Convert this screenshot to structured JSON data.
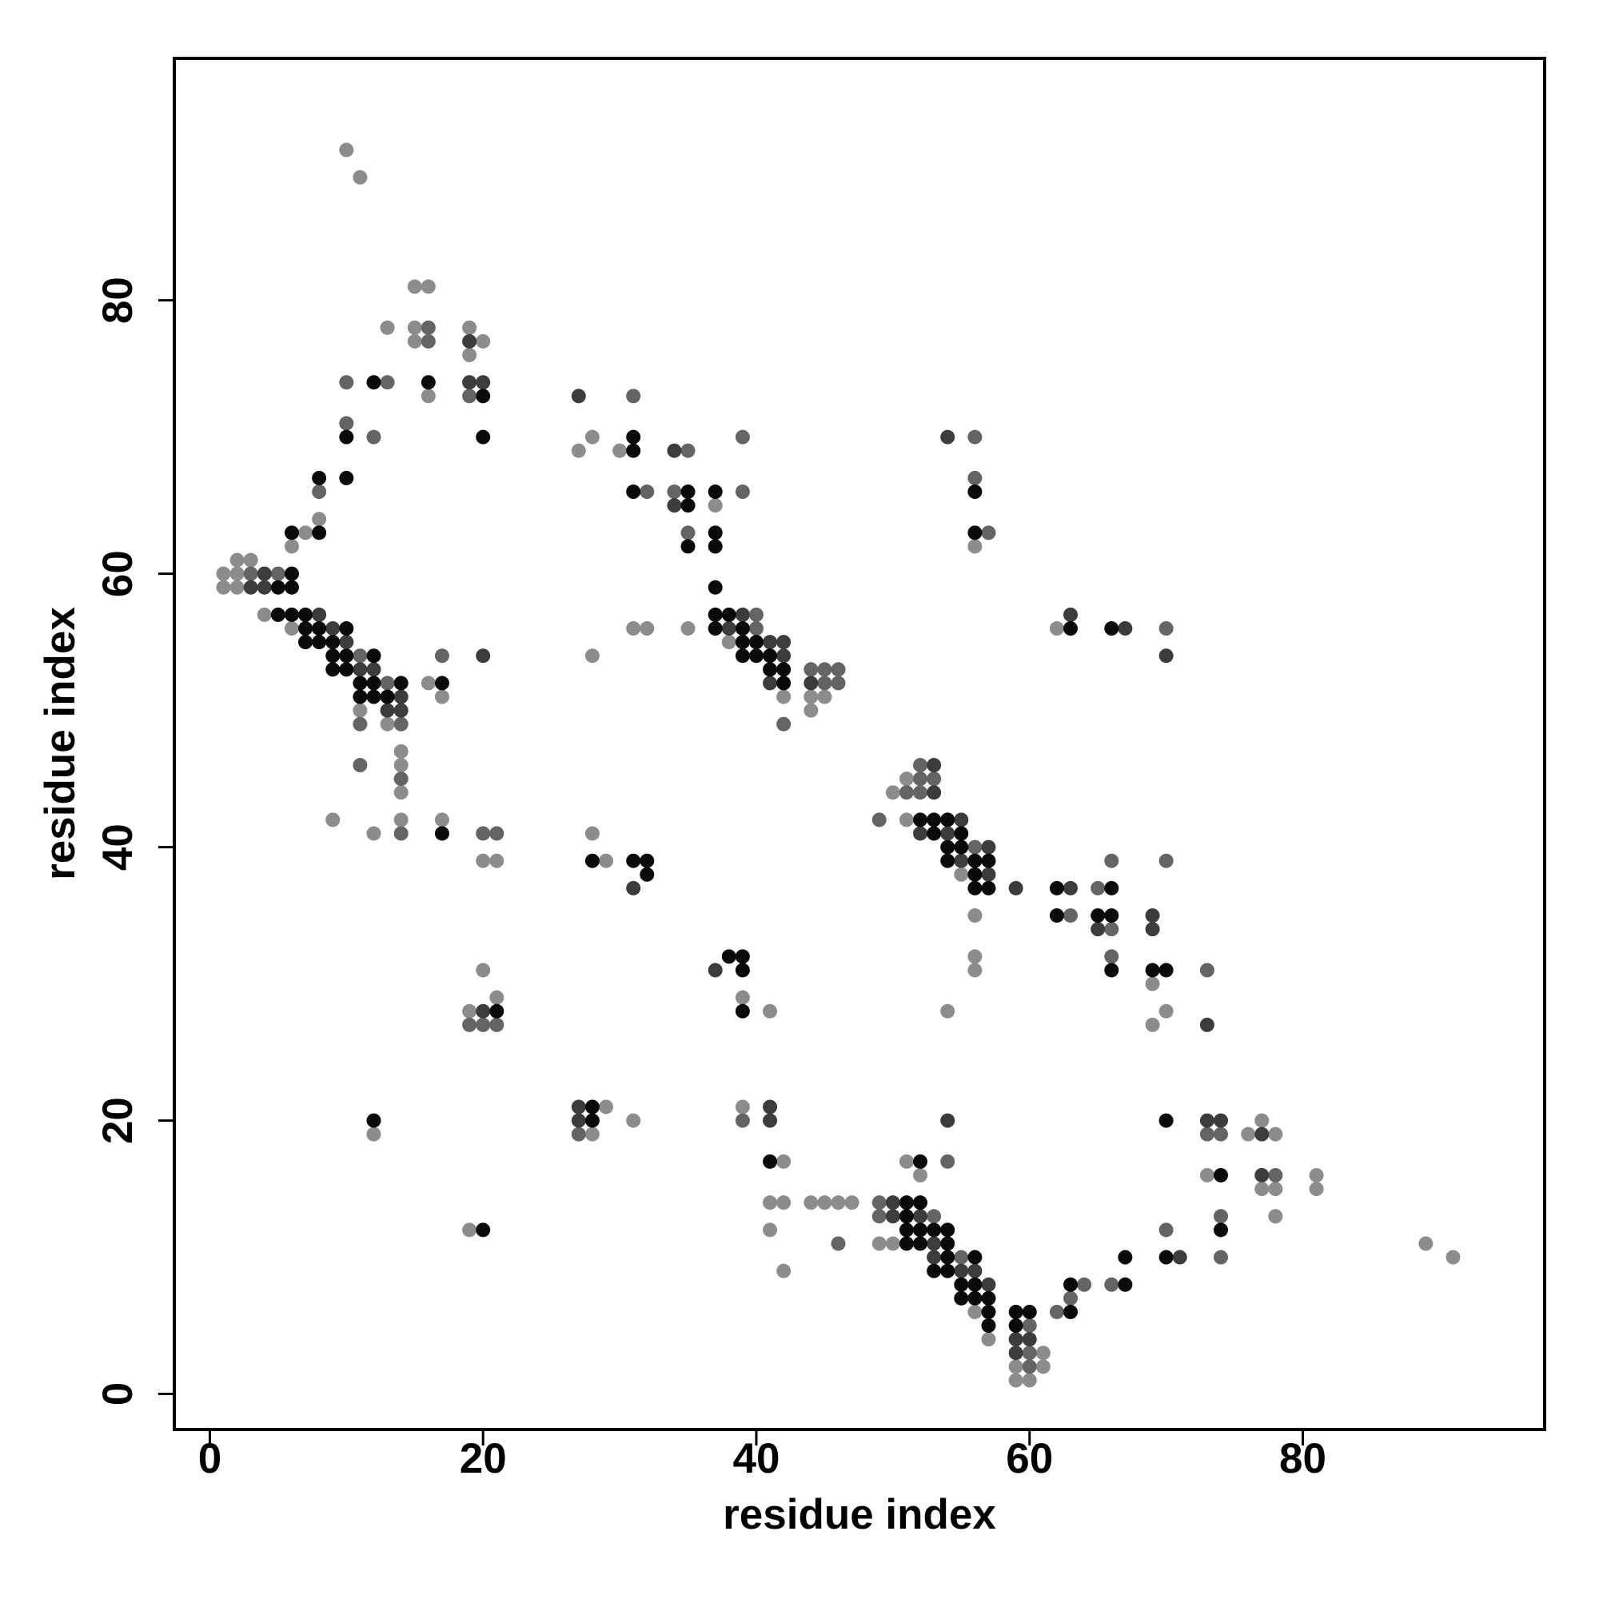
{
  "chart_data": {
    "type": "scatter",
    "x_label": "residue index",
    "y_label": "residue index",
    "xlim": [
      -2.6,
      97.7
    ],
    "ylim": [
      -2.6,
      97.7
    ],
    "xticks": [
      0,
      20,
      40,
      60,
      80
    ],
    "yticks": [
      0,
      20,
      40,
      60,
      80
    ],
    "series": [
      {
        "color": "#8c8c8c",
        "x": [
          10,
          11,
          15,
          16,
          13,
          15,
          19,
          15,
          20,
          19,
          16,
          28,
          27,
          30,
          37,
          7,
          8,
          6,
          56,
          1,
          2,
          2,
          3,
          1,
          2,
          4,
          6,
          31,
          32,
          35,
          62,
          38,
          28,
          16,
          17,
          42,
          44,
          45,
          11,
          44,
          13,
          14,
          14,
          14,
          50,
          51,
          9,
          14,
          17,
          51,
          12,
          28,
          20,
          21,
          29,
          55,
          56,
          56,
          20,
          56,
          69,
          21,
          39,
          19,
          41,
          54,
          70,
          69,
          29,
          39,
          31,
          77,
          12,
          28,
          76,
          78,
          42,
          51,
          52,
          73,
          81,
          77,
          78,
          81,
          41,
          42,
          44,
          45,
          46,
          47,
          78,
          19,
          41,
          49,
          50,
          89,
          91,
          42,
          56,
          57,
          61,
          59,
          61,
          59,
          60
        ],
        "y": [
          91,
          89,
          81,
          81,
          78,
          78,
          78,
          77,
          77,
          76,
          73,
          70,
          69,
          69,
          65,
          63,
          64,
          62,
          62,
          60,
          60,
          61,
          61,
          59,
          59,
          57,
          56,
          56,
          56,
          56,
          56,
          55,
          54,
          52,
          51,
          51,
          51,
          51,
          50,
          50,
          49,
          47,
          46,
          44,
          44,
          45,
          42,
          42,
          42,
          42,
          41,
          41,
          39,
          39,
          39,
          38,
          35,
          32,
          31,
          31,
          30,
          29,
          29,
          28,
          28,
          28,
          28,
          27,
          21,
          21,
          20,
          20,
          19,
          19,
          19,
          19,
          17,
          17,
          16,
          16,
          16,
          15,
          15,
          15,
          14,
          14,
          14,
          14,
          14,
          14,
          13,
          12,
          12,
          11,
          11,
          11,
          10,
          9,
          6,
          4,
          3,
          2,
          2,
          1,
          1
        ]
      },
      {
        "color": "#646464",
        "x": [
          16,
          16,
          10,
          13,
          19,
          31,
          10,
          12,
          39,
          56,
          35,
          56,
          8,
          32,
          34,
          39,
          35,
          57,
          3,
          5,
          40,
          40,
          70,
          11,
          17,
          44,
          45,
          46,
          13,
          45,
          46,
          11,
          14,
          42,
          11,
          14,
          51,
          52,
          52,
          53,
          52,
          49,
          14,
          20,
          21,
          56,
          66,
          70,
          65,
          63,
          66,
          66,
          73,
          19,
          20,
          21,
          39,
          27,
          73,
          74,
          54,
          78,
          49,
          49,
          53,
          74,
          70,
          46,
          55,
          74,
          64,
          66,
          63,
          62,
          60,
          60,
          60
        ],
        "y": [
          78,
          77,
          74,
          74,
          73,
          73,
          71,
          70,
          70,
          70,
          69,
          67,
          66,
          66,
          66,
          66,
          63,
          63,
          60,
          60,
          57,
          56,
          56,
          54,
          54,
          53,
          53,
          53,
          52,
          52,
          52,
          49,
          49,
          49,
          46,
          45,
          44,
          44,
          45,
          45,
          46,
          42,
          41,
          41,
          41,
          40,
          39,
          39,
          37,
          35,
          34,
          32,
          31,
          27,
          27,
          27,
          20,
          19,
          19,
          19,
          17,
          16,
          14,
          13,
          13,
          13,
          12,
          11,
          10,
          10,
          8,
          8,
          7,
          6,
          5,
          3,
          2
        ]
      },
      {
        "color": "#3c3c3c",
        "x": [
          19,
          19,
          20,
          27,
          54,
          34,
          34,
          4,
          3,
          4,
          8,
          39,
          9,
          38,
          67,
          63,
          10,
          41,
          42,
          20,
          42,
          70,
          11,
          12,
          14,
          41,
          44,
          13,
          14,
          53,
          53,
          55,
          52,
          54,
          57,
          55,
          57,
          31,
          59,
          63,
          69,
          65,
          69,
          37,
          20,
          73,
          27,
          41,
          27,
          41,
          54,
          73,
          74,
          77,
          77,
          50,
          50,
          52,
          53,
          53,
          71,
          55,
          56,
          57,
          59,
          60,
          59
        ],
        "y": [
          77,
          74,
          74,
          73,
          70,
          69,
          65,
          60,
          59,
          59,
          57,
          57,
          56,
          56,
          56,
          57,
          55,
          55,
          55,
          54,
          54,
          54,
          53,
          53,
          51,
          52,
          52,
          50,
          50,
          44,
          46,
          42,
          41,
          41,
          40,
          39,
          38,
          37,
          37,
          37,
          35,
          34,
          34,
          31,
          28,
          27,
          21,
          21,
          20,
          20,
          20,
          20,
          20,
          19,
          16,
          14,
          13,
          13,
          11,
          10,
          10,
          9,
          9,
          8,
          4,
          4,
          3
        ]
      },
      {
        "color": "#0a0a0a",
        "x": [
          12,
          16,
          20,
          10,
          20,
          31,
          31,
          8,
          10,
          31,
          35,
          37,
          56,
          35,
          8,
          6,
          37,
          56,
          35,
          37,
          6,
          5,
          6,
          37,
          5,
          6,
          7,
          37,
          38,
          7,
          8,
          10,
          37,
          39,
          63,
          66,
          7,
          8,
          9,
          39,
          40,
          9,
          10,
          12,
          39,
          40,
          41,
          9,
          10,
          41,
          42,
          11,
          12,
          14,
          17,
          42,
          11,
          12,
          13,
          52,
          53,
          54,
          17,
          53,
          55,
          54,
          55,
          28,
          31,
          32,
          54,
          56,
          57,
          32,
          56,
          56,
          57,
          62,
          66,
          62,
          65,
          66,
          39,
          66,
          69,
          70,
          38,
          39,
          21,
          39,
          28,
          12,
          28,
          70,
          41,
          52,
          74,
          51,
          52,
          51,
          20,
          51,
          52,
          53,
          54,
          74,
          51,
          52,
          54,
          54,
          56,
          67,
          70,
          53,
          54,
          55,
          56,
          63,
          67,
          55,
          56,
          57,
          57,
          59,
          60,
          63,
          57,
          59
        ],
        "y": [
          74,
          74,
          73,
          70,
          70,
          70,
          69,
          67,
          67,
          66,
          66,
          66,
          66,
          65,
          63,
          63,
          63,
          63,
          62,
          62,
          60,
          59,
          59,
          59,
          57,
          57,
          57,
          57,
          57,
          56,
          56,
          56,
          56,
          56,
          56,
          56,
          55,
          55,
          55,
          55,
          55,
          54,
          54,
          54,
          54,
          54,
          54,
          53,
          53,
          53,
          53,
          52,
          52,
          52,
          52,
          52,
          51,
          51,
          51,
          42,
          42,
          42,
          41,
          41,
          41,
          40,
          40,
          39,
          39,
          39,
          39,
          39,
          39,
          38,
          38,
          37,
          37,
          37,
          37,
          35,
          35,
          35,
          31,
          31,
          31,
          31,
          32,
          32,
          28,
          28,
          21,
          20,
          20,
          20,
          17,
          17,
          16,
          14,
          14,
          13,
          12,
          12,
          12,
          12,
          12,
          12,
          11,
          11,
          11,
          10,
          10,
          10,
          10,
          9,
          9,
          8,
          8,
          8,
          8,
          7,
          7,
          7,
          6,
          6,
          6,
          6,
          5,
          5
        ]
      }
    ]
  }
}
